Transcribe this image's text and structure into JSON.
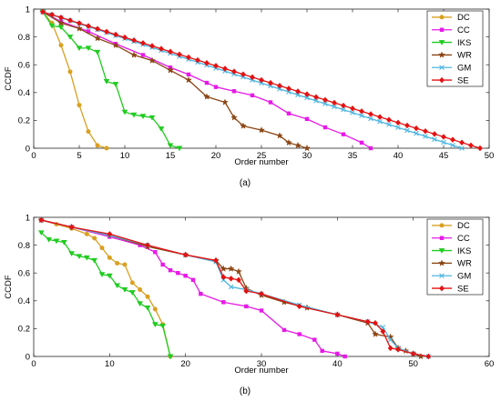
{
  "chart_data": [
    {
      "type": "line",
      "panel_label": "(a)",
      "xlabel": "Order number",
      "ylabel": "CCDF",
      "xlim": [
        0,
        50
      ],
      "ylim": [
        0,
        1
      ],
      "xticks": [
        0,
        5,
        10,
        15,
        20,
        25,
        30,
        35,
        40,
        45,
        50
      ],
      "yticks": [
        0,
        0.2,
        0.4,
        0.6,
        0.8,
        1
      ],
      "xtick_labels": [
        "0",
        "5",
        "10",
        "15",
        "20",
        "25",
        "30",
        "35",
        "40",
        "45",
        "50"
      ],
      "ytick_labels": [
        "0",
        "0.2",
        "0.4",
        "0.6",
        "0.8",
        "1"
      ],
      "grid": false,
      "legend_position": "top-right",
      "series": [
        {
          "name": "DC",
          "color": "#d9a021",
          "marker": "circle",
          "x": [
            1,
            2,
            3,
            4,
            5,
            6,
            7,
            8
          ],
          "y": [
            0.98,
            0.9,
            0.74,
            0.55,
            0.31,
            0.12,
            0.02,
            0.0
          ]
        },
        {
          "name": "CC",
          "color": "#e619e6",
          "marker": "square",
          "x": [
            1,
            3,
            6,
            9,
            12,
            15,
            17,
            19,
            20,
            22,
            24,
            26,
            28,
            30,
            32,
            34,
            36,
            37
          ],
          "y": [
            0.98,
            0.91,
            0.84,
            0.75,
            0.67,
            0.58,
            0.53,
            0.47,
            0.44,
            0.41,
            0.38,
            0.33,
            0.25,
            0.21,
            0.15,
            0.1,
            0.04,
            0.0
          ]
        },
        {
          "name": "IKS",
          "color": "#1fcc1f",
          "marker": "triangle",
          "x": [
            1,
            2,
            3,
            4,
            5,
            6,
            7,
            8,
            9,
            10,
            11,
            12,
            13,
            14,
            15,
            16
          ],
          "y": [
            0.98,
            0.88,
            0.87,
            0.8,
            0.72,
            0.72,
            0.69,
            0.48,
            0.46,
            0.26,
            0.24,
            0.23,
            0.22,
            0.14,
            0.02,
            0.0
          ]
        },
        {
          "name": "WR",
          "color": "#8b4513",
          "marker": "star",
          "x": [
            1,
            3,
            5,
            7,
            9,
            11,
            13,
            15,
            17,
            19,
            21,
            22,
            23,
            25,
            27,
            28,
            29,
            30
          ],
          "y": [
            0.98,
            0.9,
            0.86,
            0.79,
            0.74,
            0.67,
            0.63,
            0.56,
            0.49,
            0.37,
            0.33,
            0.22,
            0.16,
            0.13,
            0.09,
            0.04,
            0.02,
            0.0
          ]
        },
        {
          "name": "GM",
          "color": "#4fb6e0",
          "marker": "cross",
          "x": [
            1,
            47
          ],
          "y": [
            0.98,
            0.0
          ]
        },
        {
          "name": "SE",
          "color": "#e51010",
          "marker": "diamond",
          "x": [
            1,
            49
          ],
          "y": [
            0.98,
            0.0
          ]
        }
      ]
    },
    {
      "type": "line",
      "panel_label": "(b)",
      "xlabel": "Order number",
      "ylabel": "CCDF",
      "xlim": [
        0,
        60
      ],
      "ylim": [
        0,
        1
      ],
      "xticks": [
        0,
        10,
        20,
        30,
        40,
        50,
        60
      ],
      "yticks": [
        0,
        0.2,
        0.4,
        0.6,
        0.8,
        1
      ],
      "xtick_labels": [
        "0",
        "10",
        "20",
        "30",
        "40",
        "50",
        "60"
      ],
      "ytick_labels": [
        "0",
        "0.2",
        "0.4",
        "0.6",
        "0.8",
        "1"
      ],
      "grid": false,
      "legend_position": "top-right",
      "series": [
        {
          "name": "DC",
          "color": "#d9a021",
          "marker": "circle",
          "x": [
            1,
            3,
            5,
            7,
            8,
            9,
            10,
            11,
            12,
            13,
            14,
            15,
            16,
            17,
            18
          ],
          "y": [
            0.98,
            0.95,
            0.92,
            0.88,
            0.85,
            0.78,
            0.71,
            0.67,
            0.66,
            0.53,
            0.48,
            0.43,
            0.34,
            0.23,
            0.0
          ]
        },
        {
          "name": "CC",
          "color": "#e619e6",
          "marker": "square",
          "x": [
            1,
            5,
            10,
            14,
            16,
            17,
            18,
            19,
            20,
            21,
            22,
            25,
            28,
            30,
            33,
            35,
            37,
            38,
            40,
            41
          ],
          "y": [
            0.98,
            0.93,
            0.86,
            0.8,
            0.75,
            0.66,
            0.62,
            0.6,
            0.58,
            0.55,
            0.45,
            0.39,
            0.36,
            0.33,
            0.19,
            0.16,
            0.12,
            0.04,
            0.02,
            0.0
          ]
        },
        {
          "name": "IKS",
          "color": "#1fcc1f",
          "marker": "triangle",
          "x": [
            1,
            2,
            3,
            4,
            5,
            6,
            7,
            8,
            9,
            10,
            11,
            12,
            13,
            14,
            15,
            16,
            17,
            18
          ],
          "y": [
            0.89,
            0.84,
            0.83,
            0.82,
            0.74,
            0.72,
            0.71,
            0.69,
            0.59,
            0.58,
            0.51,
            0.48,
            0.46,
            0.38,
            0.35,
            0.23,
            0.22,
            0.0
          ]
        },
        {
          "name": "WR",
          "color": "#8b4513",
          "marker": "star",
          "x": [
            1,
            5,
            10,
            15,
            20,
            24,
            25,
            26,
            27,
            28,
            30,
            33,
            36,
            40,
            44,
            45,
            47,
            48,
            49,
            50,
            51
          ],
          "y": [
            0.98,
            0.93,
            0.87,
            0.79,
            0.73,
            0.69,
            0.63,
            0.63,
            0.61,
            0.49,
            0.44,
            0.39,
            0.35,
            0.3,
            0.24,
            0.16,
            0.14,
            0.06,
            0.04,
            0.02,
            0.0
          ]
        },
        {
          "name": "GM",
          "color": "#4fb6e0",
          "marker": "cross",
          "x": [
            1,
            5,
            10,
            15,
            20,
            24,
            25,
            26,
            28,
            30,
            35,
            40,
            44,
            46,
            47,
            48,
            50,
            52
          ],
          "y": [
            0.98,
            0.93,
            0.87,
            0.8,
            0.73,
            0.68,
            0.55,
            0.5,
            0.48,
            0.45,
            0.37,
            0.3,
            0.25,
            0.21,
            0.12,
            0.06,
            0.02,
            0.0
          ]
        },
        {
          "name": "SE",
          "color": "#e51010",
          "marker": "diamond",
          "x": [
            1,
            5,
            10,
            15,
            20,
            24,
            25,
            26,
            27,
            28,
            30,
            35,
            40,
            44,
            45,
            46,
            47,
            48,
            50,
            52
          ],
          "y": [
            0.98,
            0.93,
            0.88,
            0.8,
            0.73,
            0.69,
            0.57,
            0.56,
            0.55,
            0.47,
            0.45,
            0.36,
            0.3,
            0.25,
            0.24,
            0.18,
            0.06,
            0.05,
            0.02,
            0.0
          ]
        }
      ]
    }
  ]
}
